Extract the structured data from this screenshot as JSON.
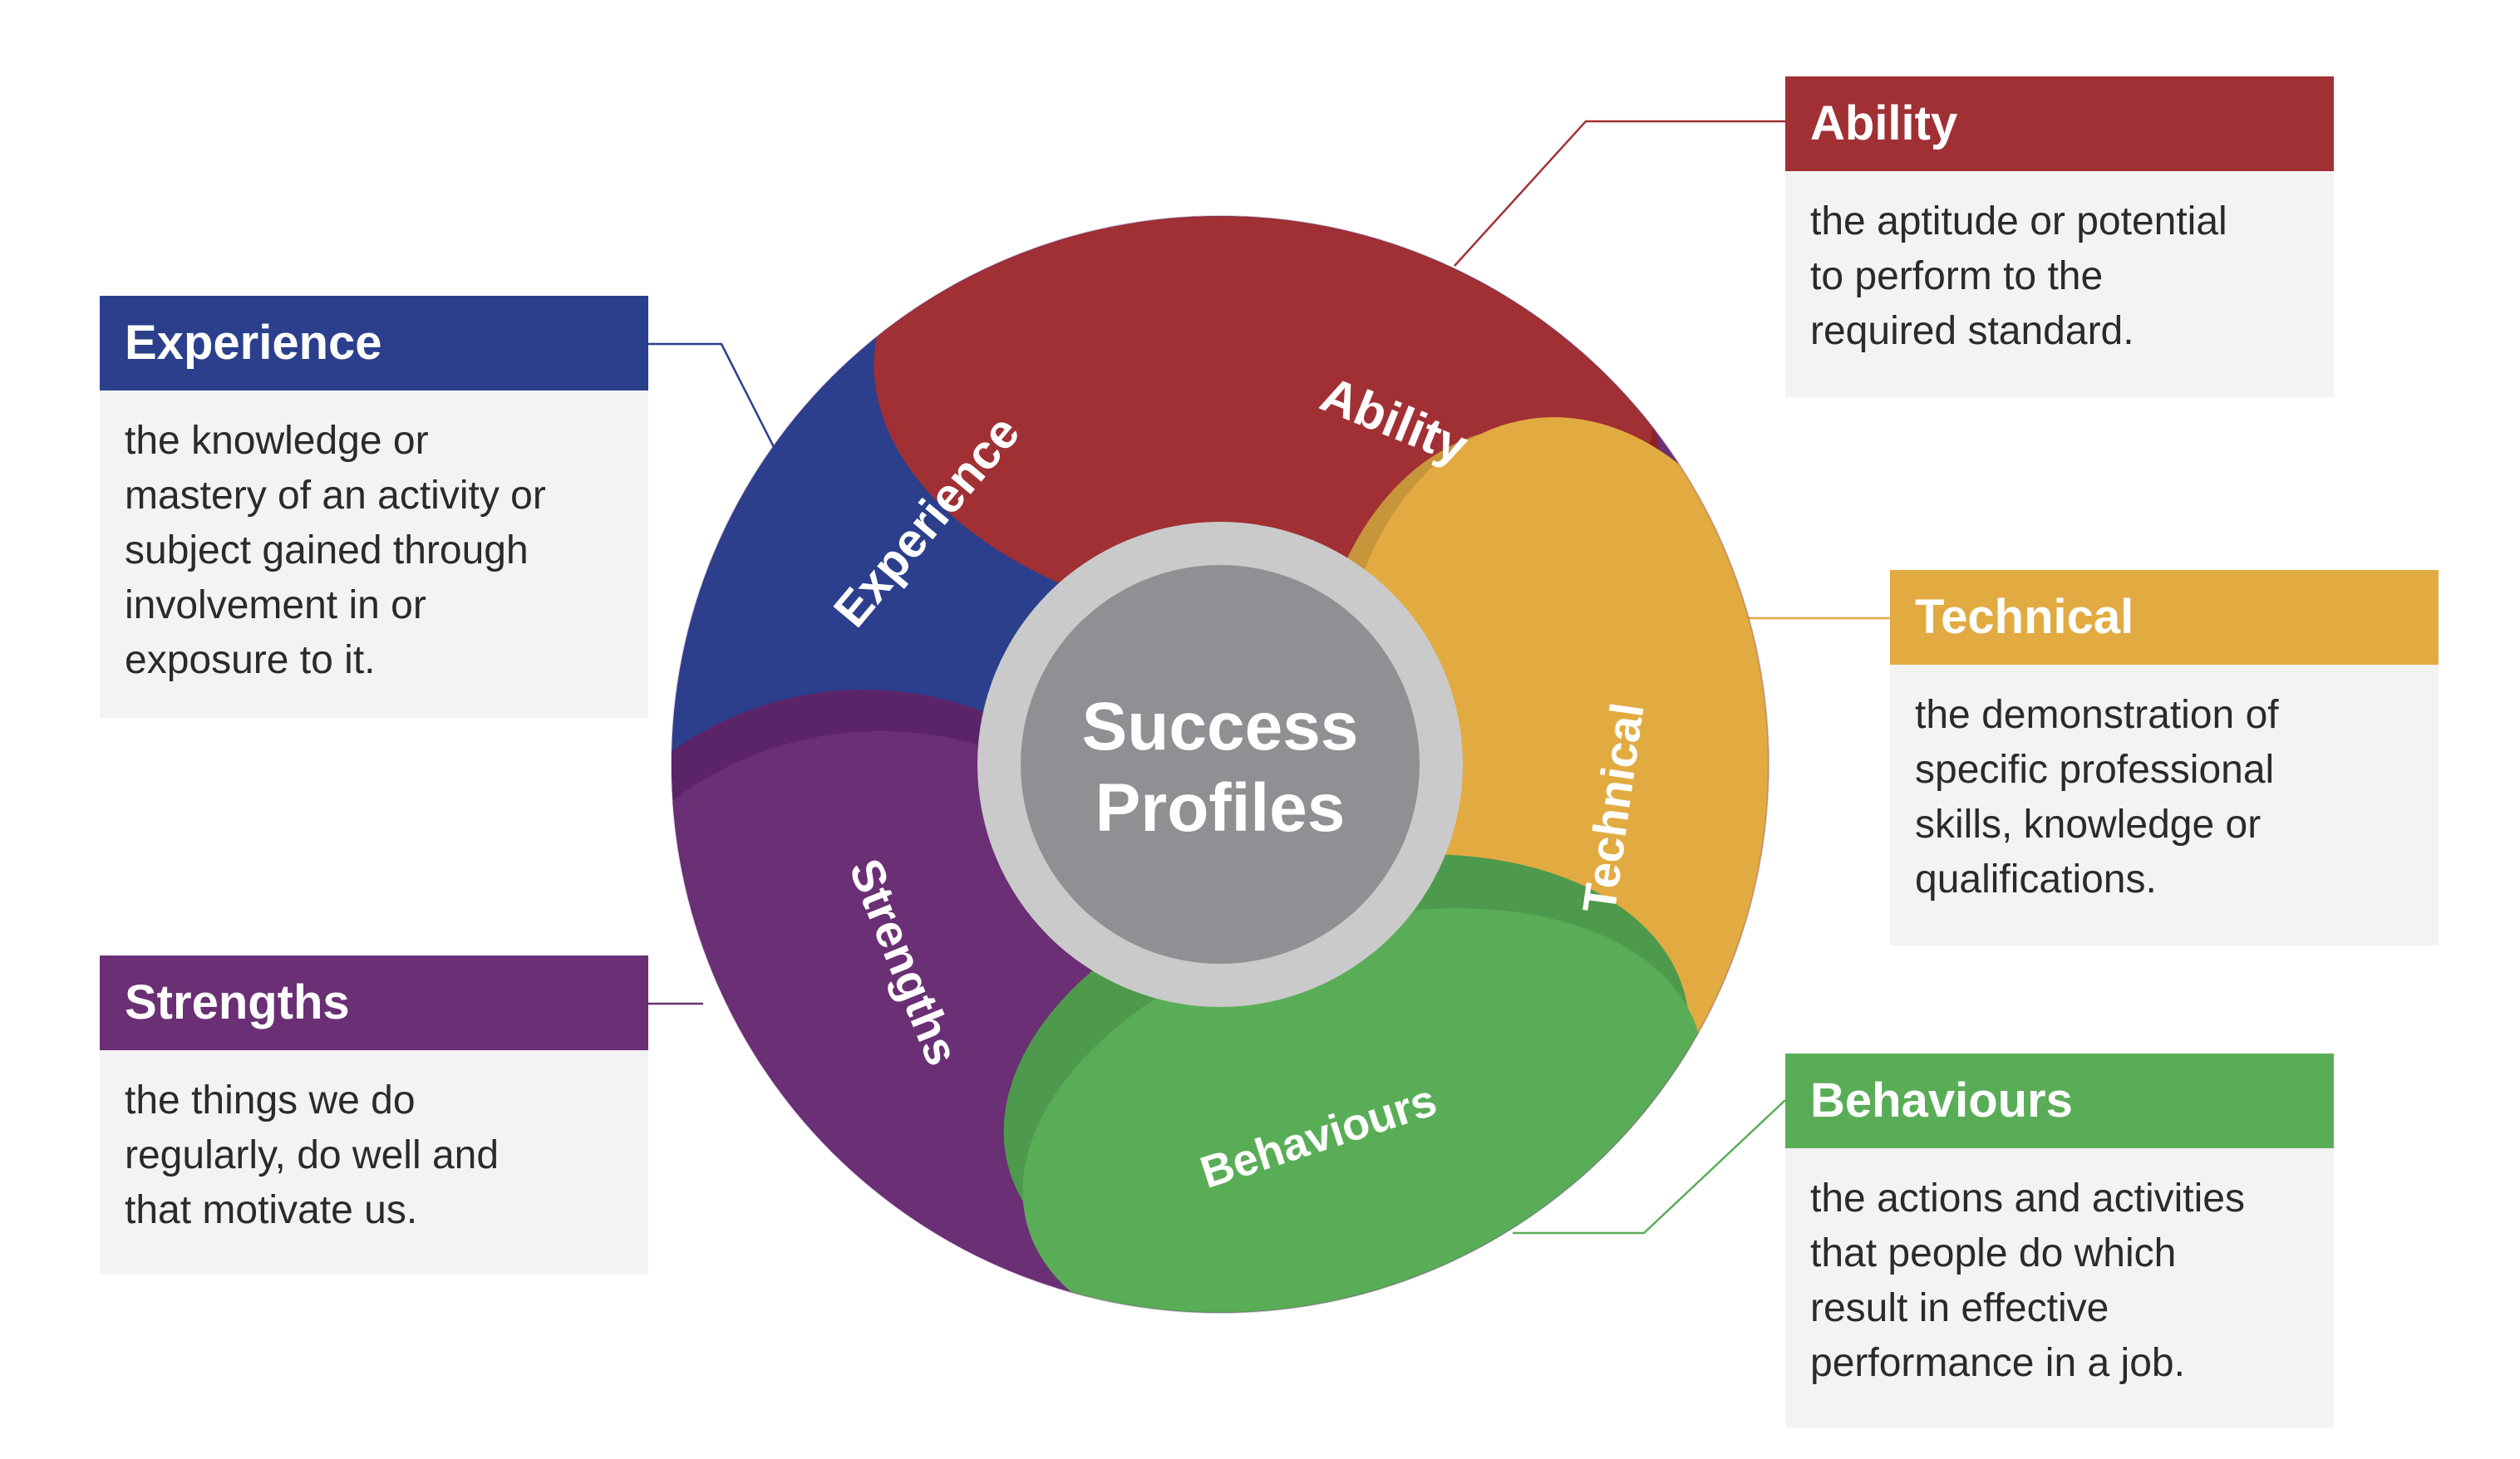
{
  "center": {
    "line1": "Success",
    "line2": "Profiles"
  },
  "segments": {
    "ability": {
      "label": "Ability",
      "color": "#a13034",
      "shade": "#8c2327"
    },
    "technical": {
      "label": "Technical",
      "color": "#e2ab41",
      "shade": "#c7953a"
    },
    "behaviours": {
      "label": "Behaviours",
      "color": "#5aad57",
      "shade": "#4e9a4c"
    },
    "strengths": {
      "label": "Strengths",
      "color": "#6a2f74",
      "shade": "#5c2468"
    },
    "experience": {
      "label": "Experience",
      "color": "#2b3f8c",
      "shade": "#293578"
    }
  },
  "callouts": {
    "ability": {
      "title": "Ability",
      "color": "#a13034",
      "lines": [
        "the aptitude or potential",
        "to perform to the",
        "required standard."
      ]
    },
    "technical": {
      "title": "Technical",
      "color": "#e2ab41",
      "lines": [
        "the demonstration of",
        "specific professional",
        "skills, knowledge or",
        "qualifications."
      ]
    },
    "behaviours": {
      "title": "Behaviours",
      "color": "#5aad57",
      "lines": [
        "the actions and activities",
        "that people do which",
        "result in effective",
        "performance in a job."
      ]
    },
    "experience": {
      "title": "Experience",
      "color": "#2b3f8c",
      "lines": [
        "the knowledge or",
        "mastery of an activity or",
        "subject gained through",
        "involvement in or",
        "exposure to it."
      ]
    },
    "strengths": {
      "title": "Strengths",
      "color": "#6a2f74",
      "lines": [
        "the things we do",
        "regularly, do well and",
        "that motivate us."
      ]
    }
  }
}
